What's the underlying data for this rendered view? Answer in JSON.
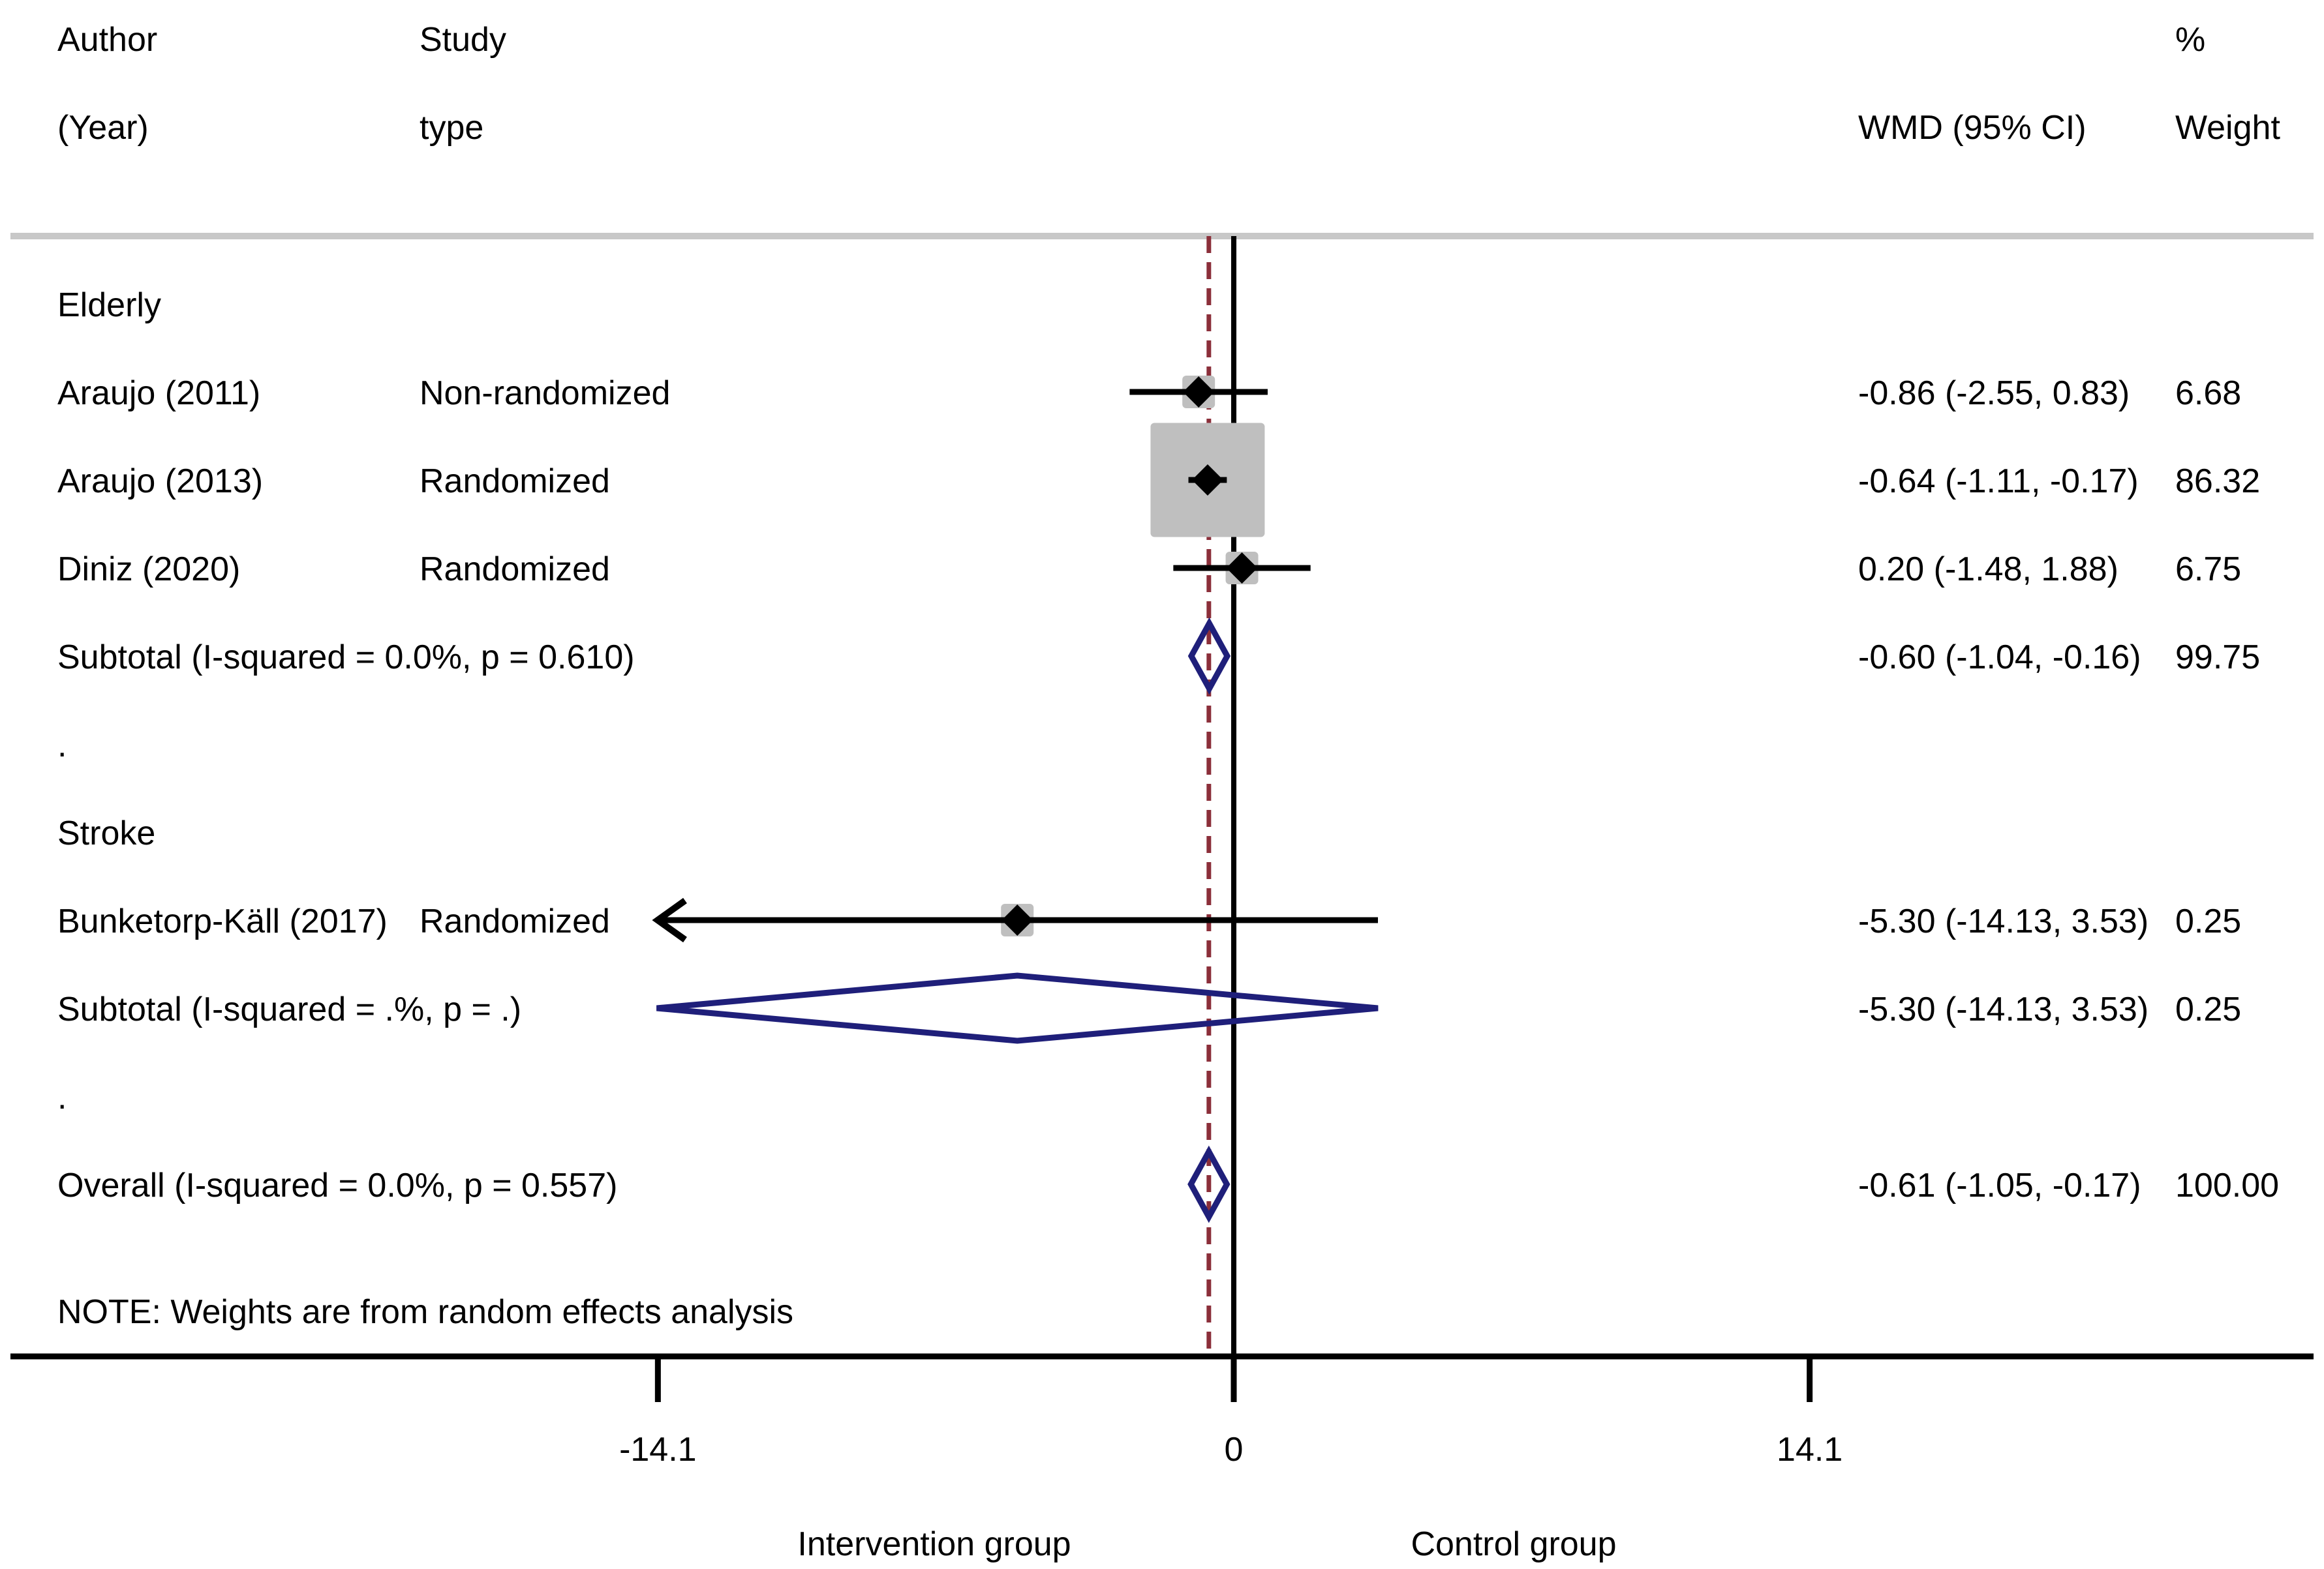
{
  "header": {
    "author_line1": "Author",
    "author_line2": "(Year)",
    "type_line1": "Study",
    "type_line2": "type",
    "effect_label": "WMD (95% CI)",
    "weight_line1": "%",
    "weight_line2": "Weight"
  },
  "note": "NOTE: Weights are from random effects analysis",
  "colors": {
    "study_box": "#bfbfbf",
    "diamond": "#1f1f7a",
    "reference_line": "#8b2f3a",
    "axis": "#000000"
  },
  "chart_data": {
    "type": "forest",
    "measure": "WMD",
    "axis": {
      "ticks": [
        -14.1,
        0,
        14.1
      ],
      "tick_labels": [
        "-14.1",
        "0",
        "14.1"
      ],
      "left_label": "Intervention group",
      "right_label": "Control group"
    },
    "overall_reference": -0.61,
    "rows": [
      {
        "kind": "group",
        "label": "Elderly"
      },
      {
        "kind": "study",
        "author": "Araujo (2011)",
        "study_type": "Non-randomized",
        "est": -0.86,
        "lo": -2.55,
        "hi": 0.83,
        "ci_text": "-0.86 (-2.55, 0.83)",
        "weight": 6.68,
        "weight_text": "6.68"
      },
      {
        "kind": "study",
        "author": "Araujo (2013)",
        "study_type": "Randomized",
        "est": -0.64,
        "lo": -1.11,
        "hi": -0.17,
        "ci_text": "-0.64 (-1.11, -0.17)",
        "weight": 86.32,
        "weight_text": "86.32"
      },
      {
        "kind": "study",
        "author": "Diniz (2020)",
        "study_type": "Randomized",
        "est": 0.2,
        "lo": -1.48,
        "hi": 1.88,
        "ci_text": "0.20 (-1.48, 1.88)",
        "weight": 6.75,
        "weight_text": "6.75"
      },
      {
        "kind": "subtotal",
        "label": "Subtotal  (I-squared = 0.0%, p = 0.610)",
        "est": -0.6,
        "lo": -1.04,
        "hi": -0.16,
        "ci_text": "-0.60 (-1.04, -0.16)",
        "weight_text": "99.75"
      },
      {
        "kind": "spacer",
        "label": "."
      },
      {
        "kind": "group",
        "label": "Stroke"
      },
      {
        "kind": "study",
        "author": "Bunketorp-Käll (2017)",
        "study_type": "Randomized",
        "est": -5.3,
        "lo": -14.13,
        "hi": 3.53,
        "ci_text": "-5.30 (-14.13, 3.53)",
        "weight": 0.25,
        "weight_text": "0.25",
        "arrow_left": true
      },
      {
        "kind": "subtotal",
        "label": "Subtotal  (I-squared = .%, p = .)",
        "est": -5.3,
        "lo": -14.13,
        "hi": 3.53,
        "ci_text": "-5.30 (-14.13, 3.53)",
        "weight_text": "0.25"
      },
      {
        "kind": "spacer",
        "label": "."
      },
      {
        "kind": "overall",
        "label": "Overall  (I-squared = 0.0%, p = 0.557)",
        "est": -0.61,
        "lo": -1.05,
        "hi": -0.17,
        "ci_text": "-0.61 (-1.05, -0.17)",
        "weight_text": "100.00"
      }
    ]
  }
}
